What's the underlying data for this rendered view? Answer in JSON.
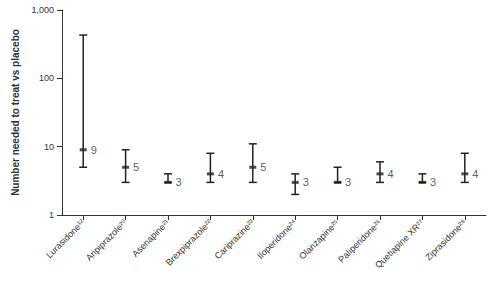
{
  "chart_data": {
    "type": "scatter",
    "y_label": "Number needed to treat vs placebo",
    "categories": [
      "Lurasidone¹²",
      "Aripiprazole²⁰",
      "Asenapine²¹",
      "Brexpiprazole²²",
      "Cariprazine²³",
      "Iloperidone²⁴",
      "Olanzapine²⁵",
      "Paliperidone²⁶",
      "Quetiapine XR²⁷",
      "Ziprasidone²⁸"
    ],
    "values": [
      9,
      5,
      3,
      4,
      5,
      3,
      3,
      4,
      3,
      4
    ],
    "ci_lower": [
      5,
      3,
      3,
      3,
      3,
      2,
      3,
      3,
      3,
      3
    ],
    "ci_upper": [
      430,
      9,
      4,
      8,
      11,
      4,
      5,
      6,
      4,
      8
    ],
    "color": "#222222",
    "ylim": [
      1,
      1000
    ],
    "yticks": [
      1,
      10,
      100,
      {
        "value": 1000,
        "label": "1,000"
      }
    ],
    "log": "y",
    "grid": false,
    "data_labels": true
  }
}
